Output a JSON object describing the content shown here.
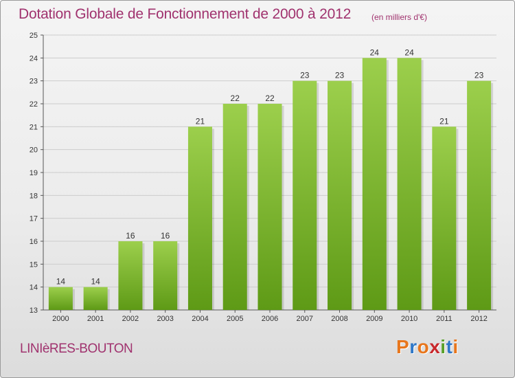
{
  "title": "Dotation Globale de Fonctionnement de 2000 à 2012",
  "unit_note": "(en milliers d'€)",
  "commune": "LINIèRES-BOUTON",
  "logo": {
    "text": "Proxiti",
    "colors": [
      "#e8761c",
      "#2f78c8",
      "#e8761c",
      "#c8282c",
      "#58a028",
      "#2f78c8",
      "#e8761c"
    ]
  },
  "colors": {
    "bar_top": "#9ccf4c",
    "bar_bottom": "#5e9a16",
    "title": "#a0326e",
    "grid": "#cccccc"
  },
  "chart_data": {
    "type": "bar",
    "title": "Dotation Globale de Fonctionnement de 2000 à 2012",
    "xlabel": "",
    "ylabel": "",
    "categories": [
      "2000",
      "2001",
      "2002",
      "2003",
      "2004",
      "2005",
      "2006",
      "2007",
      "2008",
      "2009",
      "2010",
      "2011",
      "2012"
    ],
    "values": [
      14,
      14,
      16,
      16,
      21,
      22,
      22,
      23,
      23,
      24,
      24,
      21,
      23
    ],
    "ylim": [
      13,
      25
    ],
    "yticks": [
      13,
      14,
      15,
      16,
      17,
      18,
      19,
      20,
      21,
      22,
      23,
      24,
      25
    ],
    "grid": true,
    "legend": "none"
  }
}
